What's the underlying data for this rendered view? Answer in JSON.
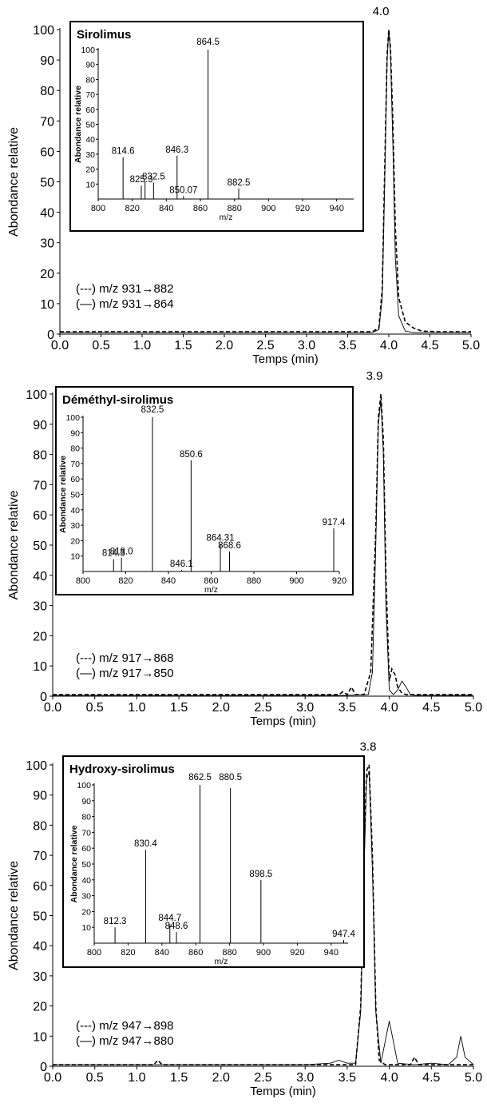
{
  "chart_data": [
    {
      "type": "line",
      "title": "Sirolimus",
      "xlabel": "Temps (min)",
      "ylabel": "Abondance relative",
      "xlim": [
        0,
        5
      ],
      "ylim": [
        0,
        100
      ],
      "x_ticks": [
        "0.0",
        "0.5",
        "1.0",
        "1.5",
        "2.0",
        "2.5",
        "3.0",
        "3.5",
        "4.0",
        "4.5",
        "5.0"
      ],
      "y_ticks": [
        "0",
        "10",
        "20",
        "30",
        "40",
        "50",
        "60",
        "70",
        "80",
        "90",
        "100"
      ],
      "peak_label": "4.0",
      "series": [
        {
          "name": "(---) m/z 931→882",
          "style": "dashed",
          "x": [
            0,
            1,
            2,
            3,
            3.5,
            3.8,
            3.88,
            3.92,
            3.95,
            3.98,
            4.0,
            4.02,
            4.05,
            4.08,
            4.12,
            4.2,
            4.3,
            4.4,
            4.6,
            5.0
          ],
          "y": [
            0.8,
            0.8,
            0.8,
            0.8,
            0.8,
            0.8,
            2,
            15,
            55,
            92,
            100,
            94,
            70,
            35,
            12,
            4,
            2,
            1,
            0.8,
            0.8
          ]
        },
        {
          "name": "(—) m/z 931→864",
          "style": "solid",
          "x": [
            0,
            1,
            2,
            3,
            3.5,
            3.8,
            3.88,
            3.92,
            3.95,
            3.98,
            4.0,
            4.02,
            4.05,
            4.08,
            4.12,
            4.2,
            4.3,
            4.5,
            5.0
          ],
          "y": [
            0.5,
            0.5,
            0.5,
            0.5,
            0.5,
            0.5,
            1.5,
            12,
            50,
            90,
            100,
            92,
            62,
            25,
            6,
            1,
            0.5,
            0.5,
            0.5
          ]
        }
      ],
      "inset": {
        "title": "Sirolimus",
        "type": "bar",
        "xlabel": "m/z",
        "ylabel": "Abondance relative",
        "xlim": [
          800,
          950
        ],
        "ylim": [
          0,
          100
        ],
        "x_ticks": [
          "800",
          "820",
          "840",
          "860",
          "880",
          "900",
          "920",
          "940"
        ],
        "y_ticks": [
          "10",
          "20",
          "30",
          "40",
          "50",
          "60",
          "70",
          "80",
          "90",
          "100"
        ],
        "peaks": [
          {
            "mz": 814.6,
            "label": "814.6",
            "intensity": 28
          },
          {
            "mz": 825.3,
            "label": "825.3",
            "intensity": 9
          },
          {
            "mz": 827.5,
            "label": "",
            "intensity": 12
          },
          {
            "mz": 832.5,
            "label": "832.5",
            "intensity": 11
          },
          {
            "mz": 846.3,
            "label": "846.3",
            "intensity": 29
          },
          {
            "mz": 850.07,
            "label": "850.07",
            "intensity": 2
          },
          {
            "mz": 864.5,
            "label": "864.5",
            "intensity": 100
          },
          {
            "mz": 882.5,
            "label": "882.5",
            "intensity": 7
          }
        ]
      }
    },
    {
      "type": "line",
      "title": "Déméthyl-sirolimus",
      "xlabel": "Temps (min)",
      "ylabel": "Abondance relative",
      "xlim": [
        0,
        5
      ],
      "ylim": [
        0,
        100
      ],
      "x_ticks": [
        "0.0",
        "0.5",
        "1.0",
        "1.5",
        "2.0",
        "2.5",
        "3.0",
        "3.5",
        "4.0",
        "4.5",
        "5.0"
      ],
      "y_ticks": [
        "0",
        "10",
        "20",
        "30",
        "40",
        "50",
        "60",
        "70",
        "80",
        "90",
        "100"
      ],
      "peak_label": "3.9",
      "series": [
        {
          "name": "(---) m/z 917→868",
          "style": "dashed",
          "x": [
            0,
            1,
            2,
            3,
            3.4,
            3.45,
            3.5,
            3.55,
            3.6,
            3.7,
            3.78,
            3.84,
            3.87,
            3.9,
            3.93,
            3.96,
            4.0,
            4.03,
            4.07,
            4.1,
            4.15,
            4.2,
            4.3,
            4.6,
            5.0
          ],
          "y": [
            0.5,
            0.5,
            0.5,
            0.5,
            0.5,
            1.5,
            0.5,
            3,
            0.5,
            0.5,
            8,
            55,
            92,
            100,
            85,
            40,
            5,
            9,
            7,
            3,
            1,
            0.5,
            0.5,
            0.5,
            0.5
          ]
        },
        {
          "name": "(—) m/z 917→850",
          "style": "solid",
          "x": [
            0,
            1,
            2,
            3,
            3.5,
            3.75,
            3.8,
            3.84,
            3.87,
            3.9,
            3.93,
            3.96,
            4.0,
            4.05,
            4.1,
            4.15,
            4.2,
            4.25,
            4.3,
            4.6,
            5.0
          ],
          "y": [
            0.3,
            0.3,
            0.3,
            0.3,
            0.3,
            0.5,
            8,
            50,
            90,
            98,
            80,
            30,
            2,
            0.5,
            2,
            5,
            3,
            0.5,
            0.3,
            0.3,
            0.3
          ]
        }
      ],
      "inset": {
        "title": "Déméthyl-sirolimus",
        "type": "bar",
        "xlabel": "m/z",
        "ylabel": "Abondance relative",
        "xlim": [
          800,
          920
        ],
        "ylim": [
          0,
          100
        ],
        "x_ticks": [
          "800",
          "820",
          "840",
          "860",
          "880",
          "900",
          "920"
        ],
        "y_ticks": [
          "10",
          "20",
          "30",
          "40",
          "50",
          "60",
          "70",
          "80",
          "90",
          "100"
        ],
        "peaks": [
          {
            "mz": 814.3,
            "label": "814.3",
            "intensity": 8
          },
          {
            "mz": 818.0,
            "label": "818.0",
            "intensity": 9
          },
          {
            "mz": 832.5,
            "label": "832.5",
            "intensity": 100
          },
          {
            "mz": 846.1,
            "label": "846.1",
            "intensity": 1
          },
          {
            "mz": 850.6,
            "label": "850.6",
            "intensity": 72
          },
          {
            "mz": 864.31,
            "label": "864.31",
            "intensity": 18
          },
          {
            "mz": 868.6,
            "label": "868.6",
            "intensity": 13
          },
          {
            "mz": 917.4,
            "label": "917.4",
            "intensity": 28
          }
        ]
      }
    },
    {
      "type": "line",
      "title": "Hydroxy-sirolimus",
      "xlabel": "Temps (min)",
      "ylabel": "Abondance relative",
      "xlim": [
        0,
        5
      ],
      "ylim": [
        0,
        100
      ],
      "x_ticks": [
        "0.0",
        "0.5",
        "1.0",
        "1.5",
        "2.0",
        "2.5",
        "3.0",
        "3.5",
        "4.0",
        "4.5",
        "5.0"
      ],
      "y_ticks": [
        "0",
        "10",
        "20",
        "30",
        "40",
        "50",
        "60",
        "70",
        "80",
        "90",
        "100"
      ],
      "peak_label": "3.8",
      "series": [
        {
          "name": "(---) m/z 947→898",
          "style": "dashed",
          "x": [
            0,
            1,
            1.2,
            1.25,
            1.3,
            2,
            3,
            3.6,
            3.66,
            3.7,
            3.73,
            3.76,
            3.8,
            3.84,
            3.88,
            3.95,
            4.1,
            4.25,
            4.3,
            4.35,
            4.5,
            5.0
          ],
          "y": [
            0.5,
            0.5,
            0.5,
            2,
            0.5,
            0.5,
            0.5,
            0.5,
            20,
            70,
            98,
            100,
            70,
            20,
            2,
            0.5,
            0.5,
            0.5,
            3,
            0.5,
            0.5,
            0.5
          ]
        },
        {
          "name": "(—) m/z 947→880",
          "style": "solid",
          "x": [
            0,
            1,
            2,
            3,
            3.3,
            3.4,
            3.5,
            3.6,
            3.66,
            3.7,
            3.73,
            3.76,
            3.8,
            3.84,
            3.9,
            3.95,
            4.0,
            4.05,
            4.1,
            4.3,
            4.5,
            4.7,
            4.8,
            4.85,
            4.9,
            5.0
          ],
          "y": [
            0.5,
            0.5,
            0.5,
            0.5,
            1,
            2,
            1,
            1,
            18,
            65,
            95,
            98,
            65,
            18,
            1,
            8,
            15,
            8,
            1,
            0.5,
            1,
            0.5,
            3,
            10,
            3,
            0.5
          ]
        }
      ],
      "inset": {
        "title": "Hydroxy-sirolimus",
        "type": "bar",
        "xlabel": "m/z",
        "ylabel": "Abondance relative",
        "xlim": [
          800,
          950
        ],
        "ylim": [
          0,
          100
        ],
        "x_ticks": [
          "800",
          "820",
          "840",
          "860",
          "880",
          "900",
          "920",
          "940"
        ],
        "y_ticks": [
          "10",
          "20",
          "30",
          "40",
          "50",
          "60",
          "70",
          "80",
          "90",
          "100"
        ],
        "peaks": [
          {
            "mz": 812.3,
            "label": "812.3",
            "intensity": 10
          },
          {
            "mz": 830.4,
            "label": "830.4",
            "intensity": 59
          },
          {
            "mz": 844.7,
            "label": "844.7",
            "intensity": 12
          },
          {
            "mz": 848.6,
            "label": "848.6",
            "intensity": 7
          },
          {
            "mz": 862.5,
            "label": "862.5",
            "intensity": 100
          },
          {
            "mz": 880.5,
            "label": "880.5",
            "intensity": 98
          },
          {
            "mz": 898.5,
            "label": "898.5",
            "intensity": 40
          },
          {
            "mz": 947.4,
            "label": "947.4",
            "intensity": 2
          }
        ]
      }
    }
  ]
}
